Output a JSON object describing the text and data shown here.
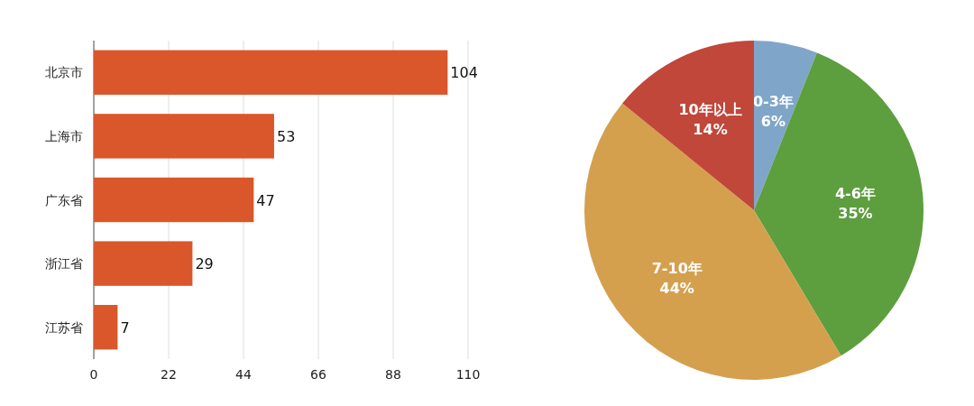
{
  "chart_data": [
    {
      "type": "bar",
      "orientation": "horizontal",
      "categories": [
        "北京市",
        "上海市",
        "广东省",
        "浙江省",
        "江苏省"
      ],
      "values": [
        104,
        53,
        47,
        29,
        7
      ],
      "color": "#d9572b",
      "xlim": [
        0,
        110
      ],
      "xticks": [
        0,
        22,
        44,
        66,
        88,
        110
      ],
      "grid": "x",
      "data_labels": true
    },
    {
      "type": "pie",
      "categories": [
        "0-3年",
        "4-6年",
        "7-10年",
        "10年以上"
      ],
      "values": [
        6,
        35,
        44,
        14
      ],
      "colors": [
        "#7fa6c9",
        "#5d9e3e",
        "#d4a04e",
        "#c0473a"
      ],
      "value_labels": [
        "6%",
        "35%",
        "44%",
        "14%"
      ]
    }
  ]
}
